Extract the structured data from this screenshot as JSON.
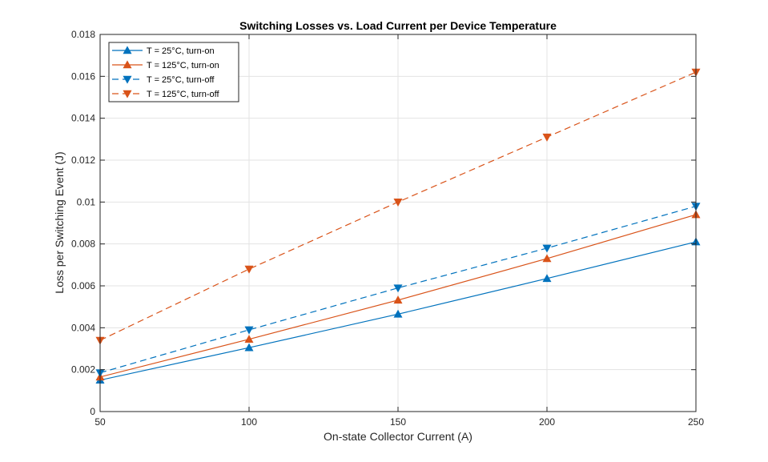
{
  "chart_data": {
    "type": "line",
    "title": "Switching Losses vs. Load Current per Device Temperature",
    "xlabel": "On-state Collector Current (A)",
    "ylabel": "Loss per Switching Event (J)",
    "xlim": [
      50,
      250
    ],
    "ylim": [
      0,
      0.018
    ],
    "x": [
      50,
      100,
      150,
      200,
      250
    ],
    "xticks": [
      50,
      100,
      150,
      200,
      250
    ],
    "xtick_labels": [
      "50",
      "100",
      "150",
      "200",
      "250"
    ],
    "yticks": [
      0,
      0.002,
      0.004,
      0.006,
      0.008,
      0.01,
      0.012,
      0.014,
      0.016,
      0.018
    ],
    "ytick_labels": [
      "0",
      "0.002",
      "0.004",
      "0.006",
      "0.008",
      "0.01",
      "0.012",
      "0.014",
      "0.016",
      "0.018"
    ],
    "grid": true,
    "legend_position": "top-left",
    "series": [
      {
        "name": "T  =  25°C,  turn-on",
        "color": "#0072BD",
        "line": "solid",
        "marker": "triangle-up",
        "values": [
          0.0015,
          0.00305,
          0.00465,
          0.00635,
          0.0081
        ]
      },
      {
        "name": "T  =  125°C,  turn-on",
        "color": "#D95319",
        "line": "solid",
        "marker": "triangle-up",
        "values": [
          0.00165,
          0.00345,
          0.00532,
          0.0073,
          0.0094
        ]
      },
      {
        "name": "T  =  25°C,  turn-off",
        "color": "#0072BD",
        "line": "dashed",
        "marker": "triangle-down",
        "values": [
          0.00185,
          0.0039,
          0.0059,
          0.0078,
          0.0098
        ]
      },
      {
        "name": "T  =  125°C,  turn-off",
        "color": "#D95319",
        "line": "dashed",
        "marker": "triangle-down",
        "values": [
          0.0034,
          0.0068,
          0.01,
          0.0131,
          0.0162
        ]
      }
    ]
  }
}
